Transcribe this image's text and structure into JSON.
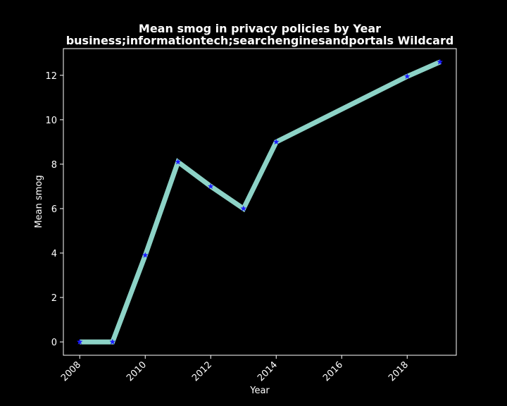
{
  "chart_data": {
    "type": "line",
    "title": "Mean smog in privacy policies by Year",
    "subtitle": "business;informationtech;searchenginesandportals Wildcard",
    "xlabel": "Year",
    "ylabel": "Mean smog",
    "x": [
      2008,
      2009,
      2010,
      2011,
      2012,
      2013,
      2014,
      2018,
      2019
    ],
    "series": [
      {
        "values": [
          0.0,
          0.0,
          3.9,
          8.1,
          7.0,
          6.0,
          9.0,
          11.95,
          12.6
        ]
      }
    ],
    "xlim": [
      2007.5,
      2019.5
    ],
    "ylim": [
      -0.6,
      13.2
    ],
    "xticks": [
      2008,
      2010,
      2012,
      2014,
      2016,
      2018
    ],
    "yticks": [
      0,
      2,
      4,
      6,
      8,
      10,
      12
    ],
    "grid": false,
    "legend": "none",
    "colors": {
      "background": "#000000",
      "line": "#8dd3c7",
      "marker": "#1a1aff",
      "axes": "#ffffff",
      "text": "#ffffff"
    }
  }
}
